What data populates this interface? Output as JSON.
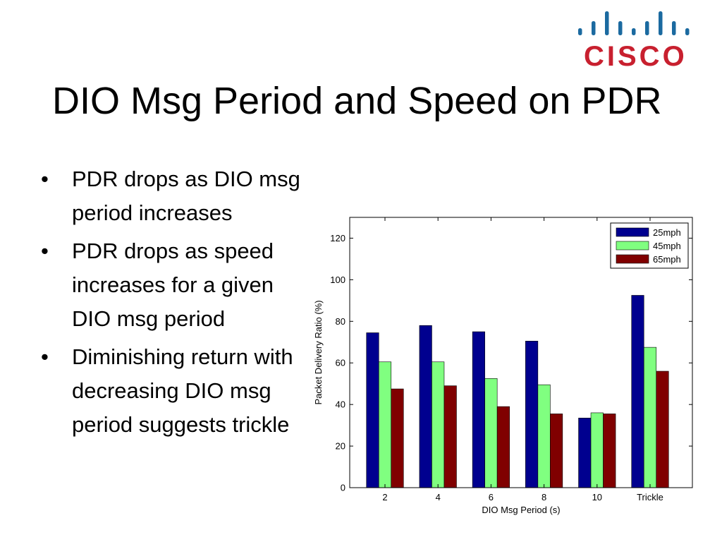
{
  "logo": {
    "text": "CISCO",
    "text_color": "#c8202f",
    "bars_color": "#1b6aa0"
  },
  "slide": {
    "title": "DIO Msg Period and Speed on PDR",
    "bullets": [
      "PDR drops as DIO msg period increases",
      "PDR drops as speed increases for a given DIO msg period",
      "Diminishing return with decreasing DIO msg period suggests trickle"
    ],
    "bullet_symbol": "•"
  },
  "chart_data": {
    "type": "bar",
    "categories": [
      "2",
      "4",
      "6",
      "8",
      "10",
      "Trickle"
    ],
    "series": [
      {
        "name": "25mph",
        "color": "#00008f",
        "values": [
          74.5,
          78,
          75,
          70.5,
          33.5,
          92.5
        ]
      },
      {
        "name": "45mph",
        "color": "#80ff80",
        "values": [
          60.5,
          60.5,
          52.5,
          49.5,
          36,
          67.5
        ]
      },
      {
        "name": "65mph",
        "color": "#800000",
        "values": [
          47.5,
          49,
          39,
          35.5,
          35.5,
          56
        ]
      }
    ],
    "title": "",
    "xlabel": "DIO Msg Period (s)",
    "ylabel": "Packet Delivery Ratio (%)",
    "ylim": [
      0,
      130
    ],
    "yticks": [
      "0",
      "20",
      "40",
      "60",
      "80",
      "100",
      "120"
    ],
    "grid": false,
    "legend_position": "top-right"
  }
}
